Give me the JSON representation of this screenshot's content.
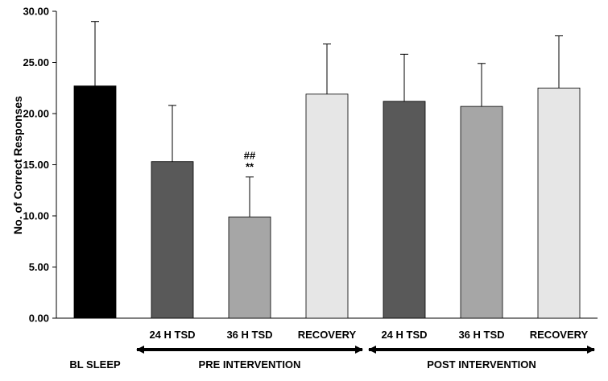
{
  "chart_data": {
    "type": "bar",
    "ylabel": "No. of Correct Responses",
    "ylim": [
      0,
      30
    ],
    "yticks": [
      "0.00",
      "5.00",
      "10.00",
      "15.00",
      "20.00",
      "25.00",
      "30.00"
    ],
    "ytick_values": [
      0,
      5,
      10,
      15,
      20,
      25,
      30
    ],
    "grid": false,
    "categories": [
      "",
      "24 H TSD",
      "36 H TSD",
      "RECOVERY",
      "24 H TSD",
      "36 H TSD",
      "RECOVERY"
    ],
    "values": [
      22.7,
      15.3,
      9.9,
      21.9,
      21.2,
      20.7,
      22.5
    ],
    "errors": [
      6.3,
      5.5,
      3.9,
      4.9,
      4.6,
      4.2,
      5.1
    ],
    "colors": [
      "#000000",
      "#595959",
      "#a6a6a6",
      "#e6e6e6",
      "#595959",
      "#a6a6a6",
      "#e6e6e6"
    ],
    "annotations": [
      {
        "bar_index": 2,
        "lines": [
          "##",
          "**"
        ]
      }
    ],
    "groups": [
      {
        "label": "BL SLEEP",
        "bars": [
          0
        ],
        "arrow": false
      },
      {
        "label": "PRE INTERVENTION",
        "bars": [
          1,
          2,
          3
        ],
        "arrow": true
      },
      {
        "label": "POST INTERVENTION",
        "bars": [
          4,
          5,
          6
        ],
        "arrow": true
      }
    ]
  }
}
